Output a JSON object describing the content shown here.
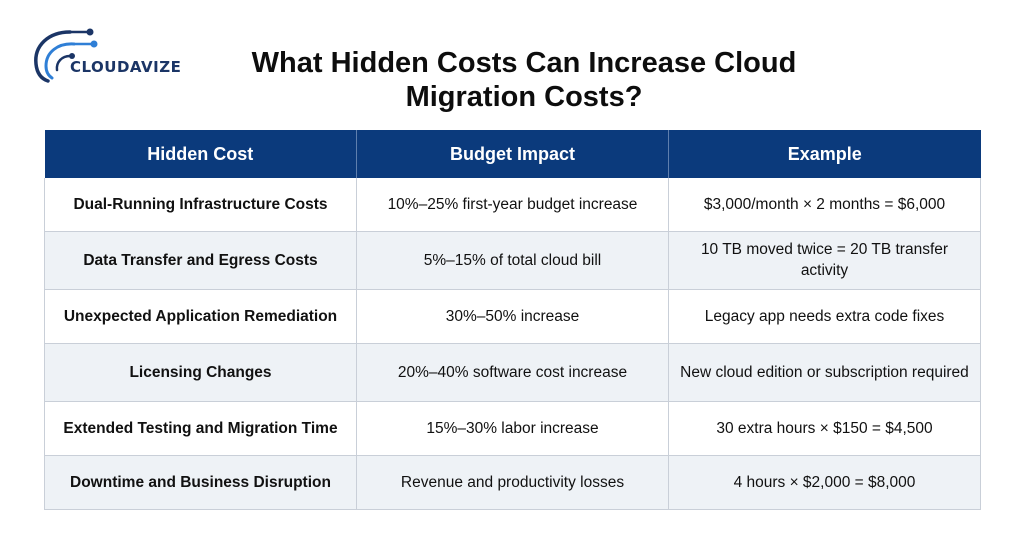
{
  "brand": {
    "name": "CLOUDAVIZE",
    "accent_color": "#1b3566",
    "icon": "cloud-network-logo"
  },
  "title": "What Hidden Costs Can Increase Cloud Migration Costs?",
  "table": {
    "header_color": "#0b3a7c",
    "headers": [
      "Hidden Cost",
      "Budget Impact",
      "Example"
    ],
    "rows": [
      [
        "Dual-Running Infrastructure Costs",
        "10%–25% first-year budget increase",
        "$3,000/month × 2 months = $6,000"
      ],
      [
        "Data Transfer and Egress Costs",
        "5%–15% of total cloud bill",
        "10 TB moved twice = 20 TB transfer activity"
      ],
      [
        "Unexpected Application Remediation",
        "30%–50% increase",
        "Legacy app needs extra code fixes"
      ],
      [
        "Licensing Changes",
        "20%–40% software cost increase",
        "New cloud edition or subscription required"
      ],
      [
        "Extended Testing and Migration Time",
        "15%–30% labor increase",
        "30 extra hours × $150 = $4,500"
      ],
      [
        "Downtime and Business Disruption",
        "Revenue and productivity losses",
        "4 hours × $2,000 = $8,000"
      ]
    ]
  }
}
